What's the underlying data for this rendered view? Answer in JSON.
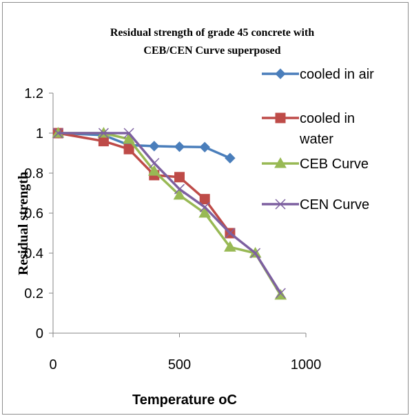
{
  "chart_data": {
    "type": "line",
    "title": "Residual strength of grade 45 concrete with CEB/CEN Curve superposed",
    "title_lines": [
      "Residual strength of grade 45 concrete with",
      "CEB/CEN Curve superposed"
    ],
    "xlabel": "Temperature oC",
    "ylabel": "Residual strength",
    "xlim": [
      0,
      1000
    ],
    "ylim": [
      0,
      1.2
    ],
    "x_ticks": [
      "0",
      "500",
      "1000"
    ],
    "y_ticks": [
      "0",
      "0.2",
      "0.4",
      "0.6",
      "0.8",
      "1",
      "1.2"
    ],
    "grid": false,
    "legend_position": "right",
    "series": [
      {
        "name": "cooled in air",
        "legend_lines": [
          "cooled in air"
        ],
        "color": "#4a7ebb",
        "marker": "diamond",
        "x": [
          20,
          200,
          300,
          400,
          500,
          600,
          700
        ],
        "y": [
          1.0,
          0.99,
          0.94,
          0.935,
          0.932,
          0.93,
          0.875
        ]
      },
      {
        "name": "cooled in water",
        "legend_lines": [
          "cooled in",
          "water"
        ],
        "color": "#be4b48",
        "marker": "square",
        "x": [
          20,
          200,
          300,
          400,
          500,
          600,
          700
        ],
        "y": [
          1.0,
          0.96,
          0.92,
          0.79,
          0.78,
          0.67,
          0.5
        ]
      },
      {
        "name": "CEB Curve",
        "legend_lines": [
          "CEB Curve"
        ],
        "color": "#98b954",
        "marker": "triangle",
        "x": [
          20,
          200,
          300,
          400,
          500,
          600,
          700,
          800,
          900
        ],
        "y": [
          1.0,
          1.0,
          0.97,
          0.81,
          0.69,
          0.6,
          0.43,
          0.4,
          0.19
        ]
      },
      {
        "name": "CEN Curve",
        "legend_lines": [
          "CEN Curve"
        ],
        "color": "#7d60a0",
        "marker": "x",
        "x": [
          20,
          200,
          300,
          400,
          500,
          600,
          700,
          800,
          900
        ],
        "y": [
          1.0,
          1.0,
          1.0,
          0.85,
          0.72,
          0.63,
          0.5,
          0.4,
          0.2
        ]
      }
    ]
  }
}
